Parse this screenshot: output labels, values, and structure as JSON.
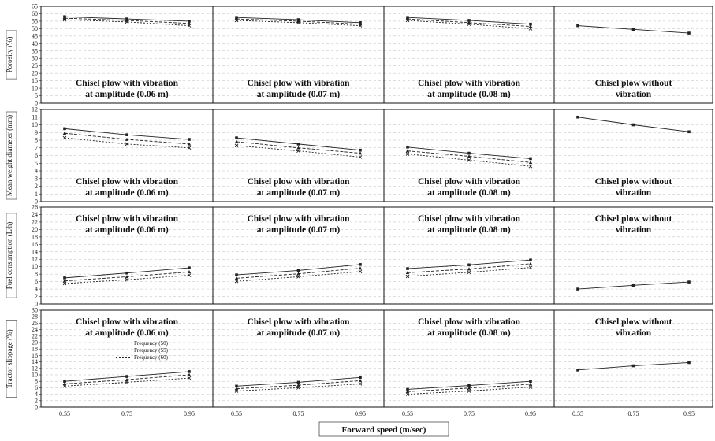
{
  "chart_data": {
    "type": "line",
    "xlabel": "Forward speed (m/sec)",
    "x_ticks": [
      "0.55",
      "0.75",
      "0.95"
    ],
    "x": [
      0.55,
      0.75,
      0.95
    ],
    "legend": [
      "Frequency (50)",
      "Frequency (55)",
      "Frequency (60)"
    ],
    "column_titles": [
      [
        "Chisel plow with vibration",
        "at amplitude (0.06 m)"
      ],
      [
        "Chisel plow with vibration",
        "at amplitude (0.07 m)"
      ],
      [
        "Chisel plow with vibration",
        "at amplitude (0.08 m)"
      ],
      [
        "Chisel plow without",
        "vibration"
      ]
    ],
    "rows": [
      {
        "ylabel": "Porosity (%)",
        "ylim": [
          0,
          65
        ],
        "yticks": [
          0,
          5,
          10,
          15,
          20,
          25,
          30,
          35,
          40,
          45,
          50,
          55,
          60,
          65
        ],
        "title_pos": "bottom",
        "panels": [
          {
            "series": [
              {
                "name": "Frequency (50)",
                "values": [
                  58,
                  56.5,
                  55
                ]
              },
              {
                "name": "Frequency (55)",
                "values": [
                  57,
                  55.5,
                  53.5
                ]
              },
              {
                "name": "Frequency (60)",
                "values": [
                  56,
                  54.5,
                  52
                ]
              }
            ]
          },
          {
            "series": [
              {
                "name": "Frequency (50)",
                "values": [
                  57.5,
                  56,
                  54
                ]
              },
              {
                "name": "Frequency (55)",
                "values": [
                  56.5,
                  55,
                  53
                ]
              },
              {
                "name": "Frequency (60)",
                "values": [
                  55.5,
                  54,
                  52
                ]
              }
            ]
          },
          {
            "series": [
              {
                "name": "Frequency (50)",
                "values": [
                  57.5,
                  55.5,
                  53
                ]
              },
              {
                "name": "Frequency (55)",
                "values": [
                  56.5,
                  54,
                  51.5
                ]
              },
              {
                "name": "Frequency (60)",
                "values": [
                  55.5,
                  53,
                  50
                ]
              }
            ]
          },
          {
            "series": [
              {
                "name": "",
                "values": [
                  52,
                  49.5,
                  47
                ]
              }
            ]
          }
        ]
      },
      {
        "ylabel": "Mean weight diameter (mm)",
        "ylim": [
          0,
          12
        ],
        "yticks": [
          0,
          1,
          2,
          3,
          4,
          5,
          6,
          7,
          8,
          9,
          10,
          11,
          12
        ],
        "title_pos": "bottom",
        "panels": [
          {
            "series": [
              {
                "name": "Frequency (50)",
                "values": [
                  9.5,
                  8.7,
                  8.1
                ]
              },
              {
                "name": "Frequency (55)",
                "values": [
                  8.9,
                  8.1,
                  7.5
                ]
              },
              {
                "name": "Frequency (60)",
                "values": [
                  8.3,
                  7.5,
                  7.0
                ]
              }
            ]
          },
          {
            "series": [
              {
                "name": "Frequency (50)",
                "values": [
                  8.3,
                  7.5,
                  6.7
                ]
              },
              {
                "name": "Frequency (55)",
                "values": [
                  7.8,
                  7.0,
                  6.3
                ]
              },
              {
                "name": "Frequency (60)",
                "values": [
                  7.3,
                  6.6,
                  5.8
                ]
              }
            ]
          },
          {
            "series": [
              {
                "name": "Frequency (50)",
                "values": [
                  7.1,
                  6.3,
                  5.6
                ]
              },
              {
                "name": "Frequency (55)",
                "values": [
                  6.6,
                  5.9,
                  5.1
                ]
              },
              {
                "name": "Frequency (60)",
                "values": [
                  6.2,
                  5.4,
                  4.6
                ]
              }
            ]
          },
          {
            "series": [
              {
                "name": "",
                "values": [
                  11.0,
                  10.0,
                  9.1
                ]
              }
            ]
          }
        ]
      },
      {
        "ylabel": "Fuel consumption (L/h)",
        "ylim": [
          0,
          26
        ],
        "yticks": [
          0,
          2,
          4,
          6,
          8,
          10,
          12,
          14,
          16,
          18,
          20,
          22,
          24,
          26
        ],
        "title_pos": "top",
        "panels": [
          {
            "series": [
              {
                "name": "Frequency (50)",
                "values": [
                  7.0,
                  8.3,
                  9.7
                ]
              },
              {
                "name": "Frequency (55)",
                "values": [
                  6.2,
                  7.3,
                  8.6
                ]
              },
              {
                "name": "Frequency (60)",
                "values": [
                  5.5,
                  6.5,
                  7.7
                ]
              }
            ]
          },
          {
            "series": [
              {
                "name": "Frequency (50)",
                "values": [
                  7.8,
                  9.0,
                  10.6
                ]
              },
              {
                "name": "Frequency (55)",
                "values": [
                  6.9,
                  8.1,
                  9.6
                ]
              },
              {
                "name": "Frequency (60)",
                "values": [
                  6.1,
                  7.3,
                  8.7
                ]
              }
            ]
          },
          {
            "series": [
              {
                "name": "Frequency (50)",
                "values": [
                  9.5,
                  10.5,
                  11.8
                ]
              },
              {
                "name": "Frequency (55)",
                "values": [
                  8.4,
                  9.4,
                  10.8
                ]
              },
              {
                "name": "Frequency (60)",
                "values": [
                  7.4,
                  8.5,
                  9.8
                ]
              }
            ]
          },
          {
            "series": [
              {
                "name": "",
                "values": [
                  4.0,
                  5.0,
                  5.9
                ]
              }
            ]
          }
        ]
      },
      {
        "ylabel": "Tractor slippage (%)",
        "ylim": [
          0,
          30
        ],
        "yticks": [
          0,
          2,
          4,
          6,
          8,
          10,
          12,
          14,
          16,
          18,
          20,
          22,
          24,
          26,
          28,
          30
        ],
        "title_pos": "top",
        "panels": [
          {
            "series": [
              {
                "name": "Frequency (50)",
                "values": [
                  8.0,
                  9.5,
                  11.0
                ]
              },
              {
                "name": "Frequency (55)",
                "values": [
                  7.2,
                  8.5,
                  10.0
                ]
              },
              {
                "name": "Frequency (60)",
                "values": [
                  6.5,
                  7.7,
                  9.0
                ]
              }
            ]
          },
          {
            "series": [
              {
                "name": "Frequency (50)",
                "values": [
                  6.5,
                  7.7,
                  9.2
                ]
              },
              {
                "name": "Frequency (55)",
                "values": [
                  5.7,
                  6.8,
                  8.2
                ]
              },
              {
                "name": "Frequency (60)",
                "values": [
                  5.0,
                  6.0,
                  7.2
                ]
              }
            ]
          },
          {
            "series": [
              {
                "name": "Frequency (50)",
                "values": [
                  5.5,
                  6.7,
                  8.0
                ]
              },
              {
                "name": "Frequency (55)",
                "values": [
                  4.8,
                  5.9,
                  7.1
                ]
              },
              {
                "name": "Frequency (60)",
                "values": [
                  4.0,
                  5.0,
                  6.2
                ]
              }
            ]
          },
          {
            "series": [
              {
                "name": "",
                "values": [
                  11.5,
                  12.8,
                  13.8
                ]
              }
            ]
          }
        ]
      }
    ]
  }
}
